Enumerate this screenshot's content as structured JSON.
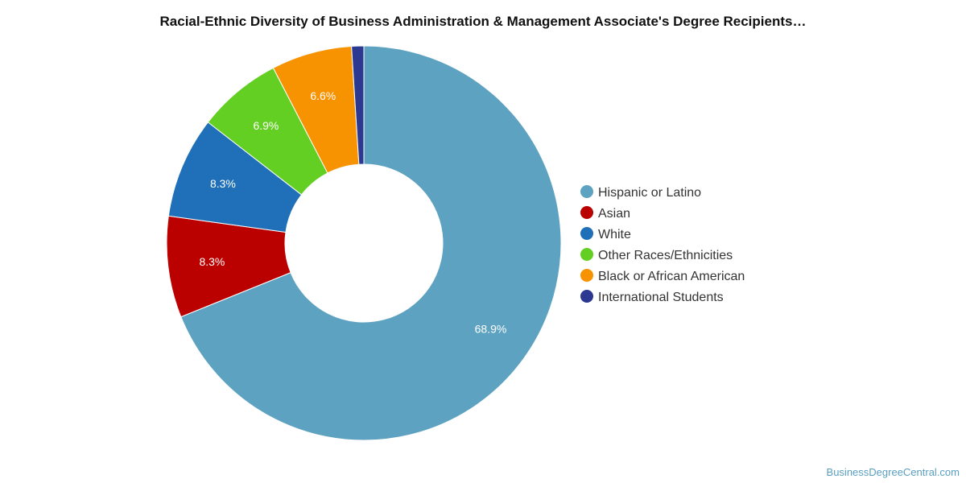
{
  "chart_data": {
    "type": "pie",
    "title": "Racial-Ethnic Diversity of Business Administration & Management Associate's Degree Recipients…",
    "slices": [
      {
        "name": "Hispanic or Latino",
        "value": 68.9,
        "label": "68.9%",
        "color": "#5da2c0"
      },
      {
        "name": "Asian",
        "value": 8.3,
        "label": "8.3%",
        "color": "#bb0000"
      },
      {
        "name": "White",
        "value": 8.3,
        "label": "8.3%",
        "color": "#1f70b8"
      },
      {
        "name": "Other Races/Ethnicities",
        "value": 6.9,
        "label": "6.9%",
        "color": "#63cf23"
      },
      {
        "name": "Black or African American",
        "value": 6.6,
        "label": "6.6%",
        "color": "#f79200"
      },
      {
        "name": "International Students",
        "value": 1.0,
        "label": "",
        "color": "#2b3990"
      }
    ],
    "donut": true,
    "legend_position": "right"
  },
  "watermark": "BusinessDegreeCentral.com"
}
